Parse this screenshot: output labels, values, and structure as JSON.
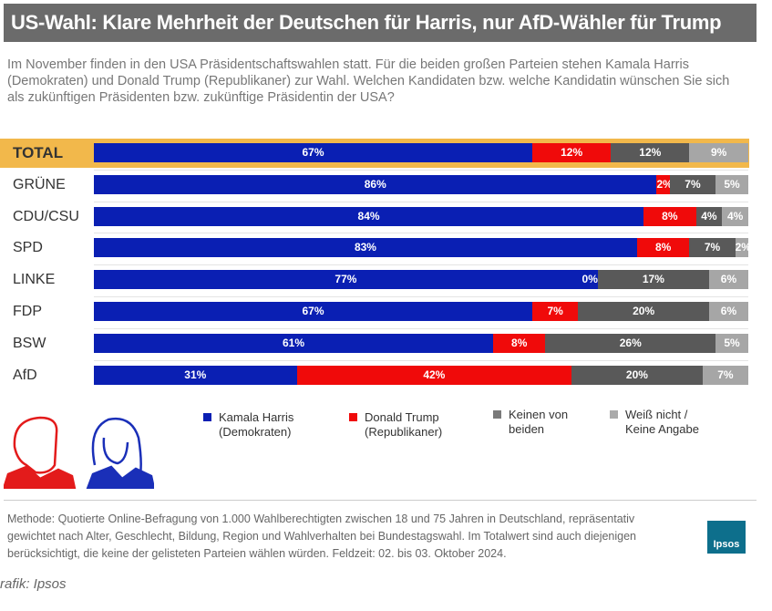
{
  "title": "US-Wahl: Klare Mehrheit der Deutschen für Harris, nur AfD-Wähler für Trump",
  "intro": "Im November finden in den USA Präsidentschaftswahlen statt. Für die beiden großen Parteien stehen Kamala Harris (Demokraten) und Donald Trump (Republikaner) zur Wahl. Welchen Kandidaten bzw. welche Kandidatin wünschen Sie sich als zukünftigen Präsidenten bzw. zukünftige Präsidentin der USA?",
  "chart_data": {
    "type": "bar",
    "orientation": "horizontal",
    "stacked": true,
    "unit": "%",
    "categories": [
      "TOTAL",
      "GRÜNE",
      "CDU/CSU",
      "SPD",
      "LINKE",
      "FDP",
      "BSW",
      "AfD"
    ],
    "series": [
      {
        "name": "Kamala Harris (Demokraten)",
        "color": "#0a1fb3",
        "values": [
          67,
          86,
          84,
          83,
          77,
          67,
          61,
          31
        ]
      },
      {
        "name": "Donald Trump (Republikaner)",
        "color": "#f00a0a",
        "values": [
          12,
          2,
          8,
          8,
          0,
          7,
          8,
          42
        ]
      },
      {
        "name": "Keinen von beiden",
        "color": "#595959",
        "values": [
          12,
          7,
          4,
          7,
          17,
          20,
          26,
          20
        ]
      },
      {
        "name": "Weiß nicht / Keine Angabe",
        "color": "#a6a6a6",
        "values": [
          9,
          5,
          4,
          2,
          6,
          6,
          5,
          7
        ]
      }
    ],
    "highlight": "TOTAL",
    "highlight_color": "#f2b84b",
    "legend": "bottom"
  },
  "legend_lines": [
    [
      "Kamala Harris",
      "(Demokraten)"
    ],
    [
      "Donald Trump",
      "(Republikaner)"
    ],
    [
      "Keinen von",
      "beiden"
    ],
    [
      "Weiß nicht /",
      "Keine Angabe"
    ]
  ],
  "footer": "Methode: Quotierte Online-Befragung von 1.000 Wahlberechtigten zwischen 18 und 75 Jahren in Deutschland, repräsentativ gewichtet nach Alter, Geschlecht, Bildung, Region und Wahlverhalten bei Bundestagswahl. Im Totalwert sind auch diejenigen berücksichtigt, die keine der gelisteten Parteien wählen würden. Feldzeit: 02. bis 03. Oktober 2024.",
  "logo": "Ipsos",
  "credit": "rafik: Ipsos"
}
